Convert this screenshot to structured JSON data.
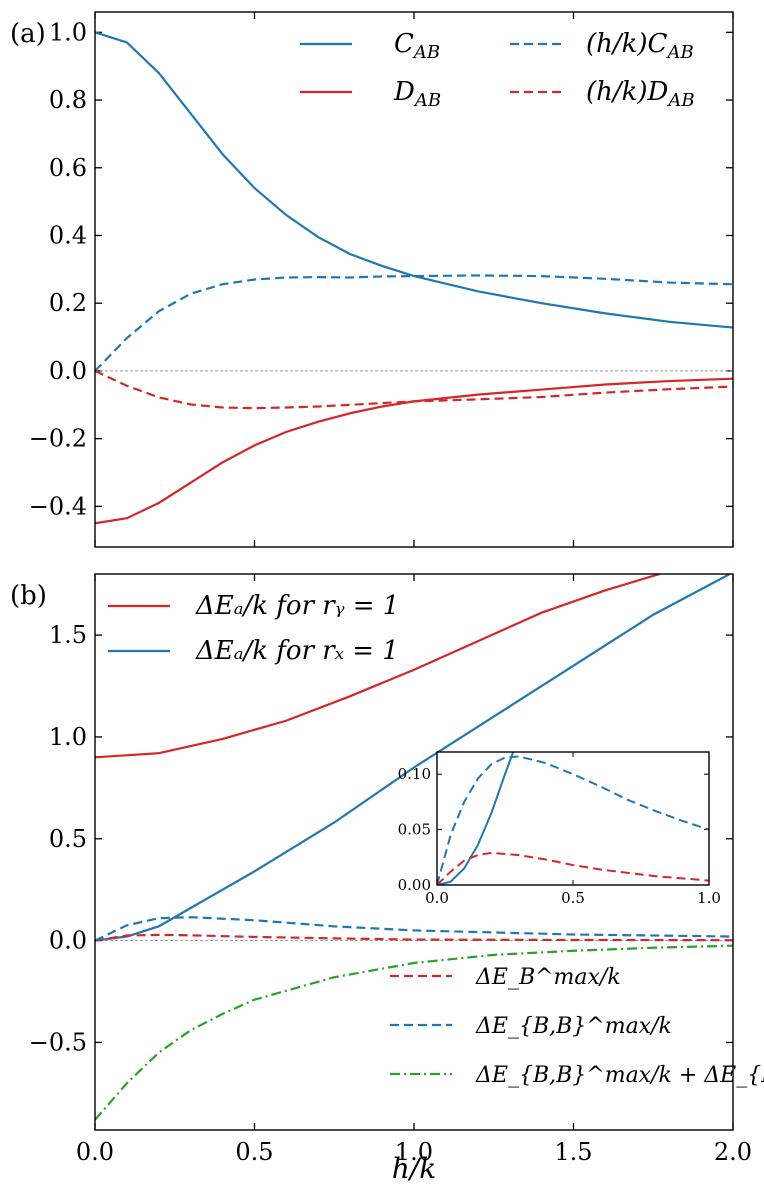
{
  "figure": {
    "xlabel": "h/k"
  },
  "chart_data": [
    {
      "type": "line",
      "panel_label": "(a)",
      "xlim": [
        0,
        2
      ],
      "ylim": [
        -0.52,
        1.06
      ],
      "yticks": [
        -0.4,
        -0.2,
        0.0,
        0.2,
        0.4,
        0.6,
        0.8,
        1.0
      ],
      "ytick_labels": [
        "−0.4",
        "−0.2",
        "0.0",
        "0.2",
        "0.4",
        "0.6",
        "0.8",
        "1.0"
      ],
      "xticks": [
        0,
        0.5,
        1.0,
        1.5,
        2.0
      ],
      "legend_position": "top-right",
      "series": [
        {
          "name": "C_AB",
          "label": "C",
          "sub": "AB",
          "prefix": "",
          "color": "#1f77b4",
          "dash": "solid",
          "x": [
            0,
            0.1,
            0.2,
            0.3,
            0.4,
            0.5,
            0.6,
            0.7,
            0.8,
            0.9,
            1.0,
            1.2,
            1.4,
            1.6,
            1.8,
            2.0
          ],
          "y": [
            1.0,
            0.97,
            0.88,
            0.76,
            0.64,
            0.54,
            0.46,
            0.395,
            0.345,
            0.31,
            0.28,
            0.235,
            0.2,
            0.17,
            0.145,
            0.128
          ]
        },
        {
          "name": "D_AB",
          "label": "D",
          "sub": "AB",
          "prefix": "",
          "color": "#d62728",
          "dash": "solid",
          "x": [
            0,
            0.1,
            0.2,
            0.3,
            0.4,
            0.5,
            0.6,
            0.7,
            0.8,
            0.9,
            1.0,
            1.2,
            1.4,
            1.6,
            1.8,
            2.0
          ],
          "y": [
            -0.45,
            -0.435,
            -0.39,
            -0.33,
            -0.27,
            -0.22,
            -0.18,
            -0.15,
            -0.125,
            -0.105,
            -0.09,
            -0.07,
            -0.055,
            -0.04,
            -0.03,
            -0.023
          ]
        },
        {
          "name": "(h/k)C_AB",
          "label": "C",
          "sub": "AB",
          "prefix": "(h/k)",
          "color": "#1f77b4",
          "dash": "dashed",
          "x": [
            0,
            0.1,
            0.2,
            0.3,
            0.4,
            0.5,
            0.6,
            0.7,
            0.8,
            0.9,
            1.0,
            1.2,
            1.4,
            1.6,
            1.8,
            2.0
          ],
          "y": [
            0.0,
            0.097,
            0.176,
            0.228,
            0.256,
            0.27,
            0.276,
            0.277,
            0.276,
            0.279,
            0.28,
            0.282,
            0.28,
            0.272,
            0.261,
            0.256
          ]
        },
        {
          "name": "(h/k)D_AB",
          "label": "D",
          "sub": "AB",
          "prefix": "(h/k)",
          "color": "#d62728",
          "dash": "dashed",
          "x": [
            0,
            0.1,
            0.2,
            0.3,
            0.4,
            0.5,
            0.6,
            0.7,
            0.8,
            0.9,
            1.0,
            1.2,
            1.4,
            1.6,
            1.8,
            2.0
          ],
          "y": [
            0.0,
            -0.044,
            -0.078,
            -0.099,
            -0.108,
            -0.11,
            -0.108,
            -0.105,
            -0.1,
            -0.095,
            -0.09,
            -0.084,
            -0.077,
            -0.064,
            -0.054,
            -0.046
          ]
        }
      ]
    },
    {
      "type": "line",
      "panel_label": "(b)",
      "xlim": [
        0,
        2
      ],
      "ylim": [
        -0.93,
        1.8
      ],
      "yticks": [
        -0.5,
        0.0,
        0.5,
        1.0,
        1.5
      ],
      "ytick_labels": [
        "−0.5",
        "0.0",
        "0.5",
        "1.0",
        "1.5"
      ],
      "xticks": [
        0,
        0.5,
        1.0,
        1.5,
        2.0
      ],
      "xtick_labels": [
        "0.0",
        "0.5",
        "1.0",
        "1.5",
        "2.0"
      ],
      "legends": {
        "top_left": [
          {
            "text": "ΔEₐ/k for rᵧ = 1",
            "color": "#d62728"
          },
          {
            "text": "ΔEₐ/k for rₓ = 1",
            "color": "#1f77b4"
          }
        ],
        "bottom_right": [
          {
            "text": "ΔE_B^max/k",
            "color": "#d62728",
            "style": "dashed"
          },
          {
            "text": "ΔE_{B,B}^max/k",
            "color": "#1f77b4",
            "style": "dashed"
          },
          {
            "text": "ΔE_{B,B}^max/k + ΔE_{B,R}/k",
            "color": "#2ca02c",
            "style": "dashdot"
          }
        ]
      },
      "series": [
        {
          "name": "ΔE_A/k for r_y = 1",
          "color": "#d62728",
          "dash": "solid",
          "x": [
            0,
            0.2,
            0.4,
            0.6,
            0.8,
            1.0,
            1.2,
            1.4,
            1.6,
            1.77
          ],
          "y": [
            0.9,
            0.92,
            0.99,
            1.08,
            1.2,
            1.33,
            1.47,
            1.61,
            1.72,
            1.8
          ]
        },
        {
          "name": "ΔE_A/k for r_x = 1",
          "color": "#1f77b4",
          "dash": "solid",
          "x": [
            0,
            0.1,
            0.2,
            0.3,
            0.5,
            0.75,
            1.0,
            1.25,
            1.5,
            1.75,
            1.99
          ],
          "y": [
            0.0,
            0.02,
            0.07,
            0.16,
            0.34,
            0.58,
            0.85,
            1.1,
            1.35,
            1.6,
            1.8
          ]
        },
        {
          "name": "ΔE_B^max/k",
          "color": "#d62728",
          "dash": "dashed",
          "x": [
            0,
            0.1,
            0.2,
            0.3,
            0.5,
            0.75,
            1.0,
            1.5,
            2.0
          ],
          "y": [
            0.0,
            0.025,
            0.028,
            0.026,
            0.018,
            0.011,
            0.005,
            0.003,
            0.002
          ]
        },
        {
          "name": "ΔE_{B,B}^max/k",
          "color": "#1f77b4",
          "dash": "dashed",
          "x": [
            0,
            0.1,
            0.2,
            0.3,
            0.5,
            0.75,
            1.0,
            1.5,
            2.0
          ],
          "y": [
            0.0,
            0.075,
            0.11,
            0.115,
            0.1,
            0.07,
            0.05,
            0.03,
            0.02
          ]
        },
        {
          "name": "ΔE_{B,B}^max/k + ΔE_{B,R}/k",
          "color": "#2ca02c",
          "dash": "dashdot",
          "x": [
            0,
            0.1,
            0.2,
            0.3,
            0.4,
            0.5,
            0.75,
            1.0,
            1.25,
            1.5,
            1.75,
            2.0
          ],
          "y": [
            -0.88,
            -0.7,
            -0.55,
            -0.44,
            -0.36,
            -0.29,
            -0.18,
            -0.11,
            -0.07,
            -0.05,
            -0.035,
            -0.025
          ]
        }
      ],
      "inset": {
        "xlim": [
          0,
          1
        ],
        "ylim": [
          0,
          0.12
        ],
        "xticks": [
          0,
          0.5,
          1.0
        ],
        "xtick_labels": [
          "0.0",
          "0.5",
          "1.0"
        ],
        "yticks": [
          0,
          0.05,
          0.1
        ],
        "ytick_labels": [
          "0.00",
          "0.05",
          "0.10"
        ],
        "series": [
          {
            "name": "ΔE_A/k for r_x = 1",
            "color": "#1f77b4",
            "dash": "solid",
            "x": [
              0,
              0.05,
              0.1,
              0.15,
              0.2,
              0.25,
              0.28
            ],
            "y": [
              0.0,
              0.003,
              0.015,
              0.036,
              0.065,
              0.1,
              0.12
            ]
          },
          {
            "name": "ΔE_{B,B}^max/k",
            "color": "#1f77b4",
            "dash": "dashed",
            "x": [
              0,
              0.05,
              0.1,
              0.15,
              0.2,
              0.25,
              0.3,
              0.4,
              0.5,
              0.6,
              0.7,
              0.8,
              0.9,
              1.0
            ],
            "y": [
              0.0,
              0.045,
              0.075,
              0.096,
              0.109,
              0.115,
              0.116,
              0.11,
              0.1,
              0.089,
              0.077,
              0.067,
              0.058,
              0.05
            ]
          },
          {
            "name": "ΔE_B^max/k",
            "color": "#d62728",
            "dash": "dashed",
            "x": [
              0,
              0.05,
              0.1,
              0.15,
              0.2,
              0.25,
              0.3,
              0.4,
              0.5,
              0.6,
              0.7,
              0.8,
              0.9,
              1.0
            ],
            "y": [
              0.0,
              0.012,
              0.022,
              0.027,
              0.029,
              0.028,
              0.027,
              0.023,
              0.018,
              0.014,
              0.011,
              0.008,
              0.006,
              0.004
            ]
          }
        ]
      }
    }
  ]
}
